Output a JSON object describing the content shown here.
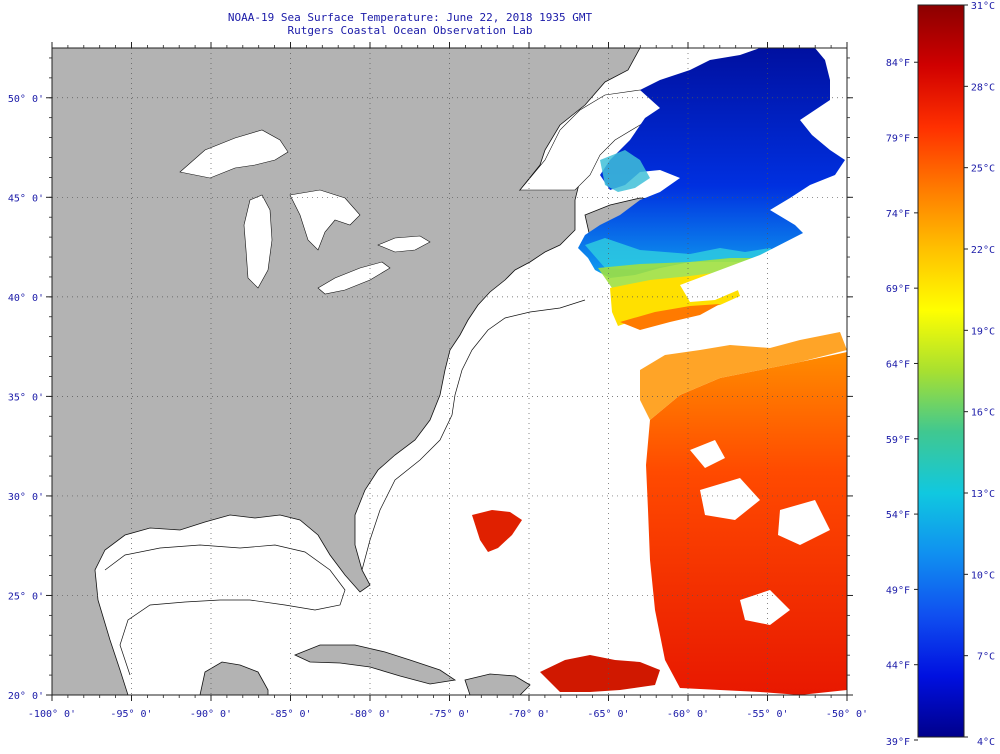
{
  "title": {
    "line1": "NOAA-19 Sea Surface Temperature:  June 22, 2018 1935 GMT",
    "line2": "Rutgers Coastal Ocean Observation Lab"
  },
  "map": {
    "lon_range": [
      -100,
      -50
    ],
    "lat_range": [
      20,
      52.5
    ],
    "land_color": "#b3b3b3",
    "ocean_no_data_color": "#ffffff",
    "lon_ticks": [
      {
        "value": -100,
        "label": "-100° 0'"
      },
      {
        "value": -95,
        "label": "-95° 0'"
      },
      {
        "value": -90,
        "label": "-90° 0'"
      },
      {
        "value": -85,
        "label": "-85° 0'"
      },
      {
        "value": -80,
        "label": "-80° 0'"
      },
      {
        "value": -75,
        "label": "-75° 0'"
      },
      {
        "value": -70,
        "label": "-70° 0'"
      },
      {
        "value": -65,
        "label": "-65° 0'"
      },
      {
        "value": -60,
        "label": "-60° 0'"
      },
      {
        "value": -55,
        "label": "-55° 0'"
      },
      {
        "value": -50,
        "label": "-50° 0'"
      }
    ],
    "lat_ticks": [
      {
        "value": 50,
        "label": "50° 0'"
      },
      {
        "value": 45,
        "label": "45° 0'"
      },
      {
        "value": 40,
        "label": "40° 0'"
      },
      {
        "value": 35,
        "label": "35° 0'"
      },
      {
        "value": 30,
        "label": "30° 0'"
      },
      {
        "value": 25,
        "label": "25° 0'"
      },
      {
        "value": 20,
        "label": "20° 0'"
      }
    ]
  },
  "colorbar": {
    "min_c": 4,
    "max_c": 31,
    "celsius_labels": [
      "31°C",
      "28°C",
      "25°C",
      "22°C",
      "19°C",
      "16°C",
      "13°C",
      "10°C",
      "7°C",
      "4°C"
    ],
    "celsius_values": [
      31,
      28,
      25,
      22,
      19,
      16,
      13,
      10,
      7,
      4
    ],
    "fahrenheit_labels": [
      "84°F",
      "79°F",
      "74°F",
      "69°F",
      "64°F",
      "59°F",
      "54°F",
      "49°F",
      "44°F",
      "39°F"
    ],
    "fahrenheit_values": [
      84,
      79,
      74,
      69,
      64,
      59,
      54,
      49,
      44,
      39
    ],
    "gradient": [
      "#8b0000",
      "#d00000",
      "#ff3000",
      "#ff7a00",
      "#ffc000",
      "#ffff00",
      "#a8e030",
      "#40c890",
      "#10c8e0",
      "#1090f0",
      "#1050f0",
      "#0010e0",
      "#00008b"
    ]
  }
}
